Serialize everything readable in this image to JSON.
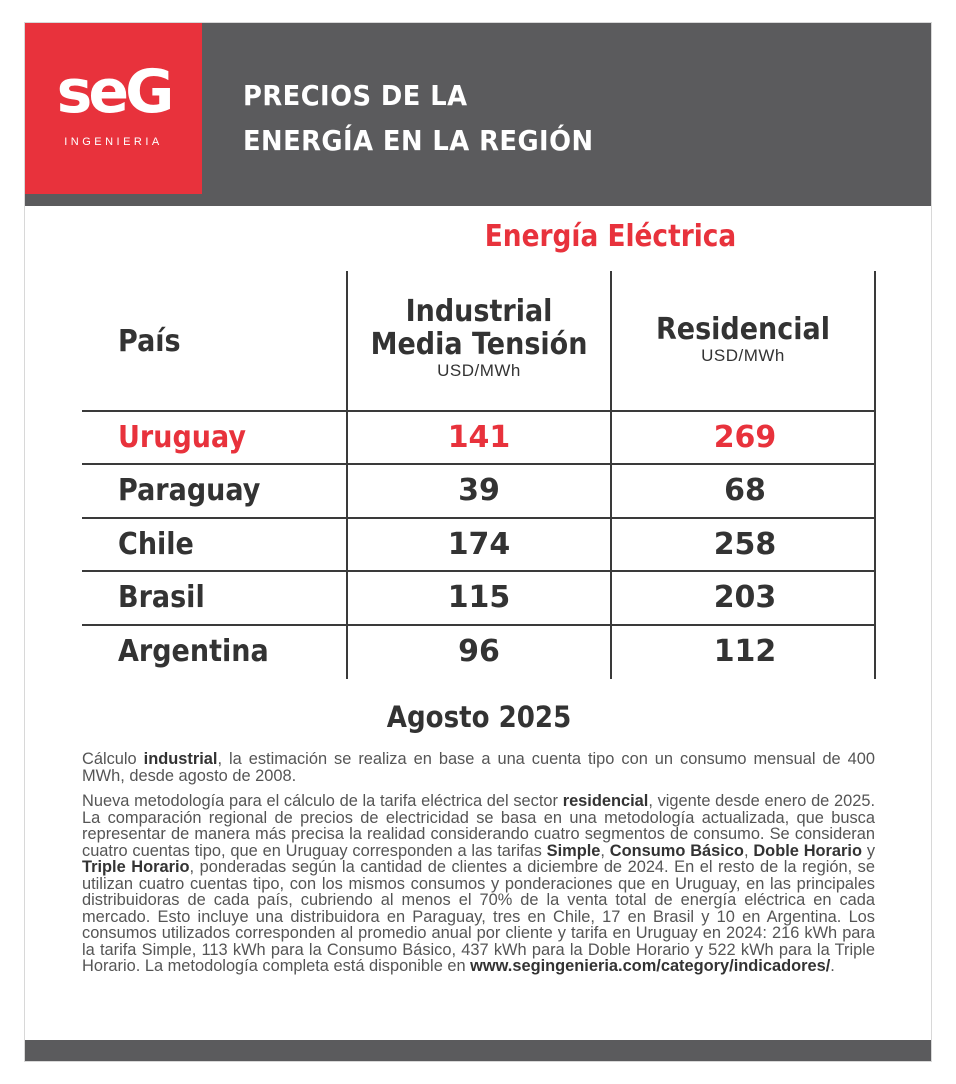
{
  "brand": {
    "logo": "seG",
    "tagline": "INGENIERIA",
    "red": "#e8323c",
    "gray": "#5b5b5d"
  },
  "header": {
    "title_line1": "PRECIOS DE LA",
    "title_line2": "ENERGÍA EN LA REGIÓN"
  },
  "table": {
    "section": "Energía Eléctrica",
    "col_country": "País",
    "col_industrial_line1": "Industrial",
    "col_industrial_line2": "Media Tensión",
    "col_industrial_unit": "USD/MWh",
    "col_residential": "Residencial",
    "col_residential_unit": "USD/MWh",
    "rows": [
      {
        "country": "Uruguay",
        "industrial": "141",
        "residential": "269"
      },
      {
        "country": "Paraguay",
        "industrial": "39",
        "residential": "68"
      },
      {
        "country": "Chile",
        "industrial": "174",
        "residential": "258"
      },
      {
        "country": "Brasil",
        "industrial": "115",
        "residential": "203"
      },
      {
        "country": "Argentina",
        "industrial": "96",
        "residential": "112"
      }
    ]
  },
  "date": "Agosto 2025",
  "notes": {
    "p1": {
      "a": "Cálculo ",
      "b": "industrial",
      "c": ", la estimación se realiza en base a una cuenta tipo con un consumo mensual de 400 MWh, desde agosto de 2008."
    },
    "p2": {
      "a": "Nueva metodología para el cálculo de la tarifa eléctrica del sector ",
      "b": "residencial",
      "c": ", vigente desde enero de 2025. La comparación regional de precios de electricidad se basa en una metodología actualizada, que busca representar de manera más precisa la realidad considerando cuatro segmentos de consumo. Se consideran cuatro cuentas tipo, que en Uruguay corresponden a las tarifas ",
      "d": "Simple",
      "e": ", ",
      "f": "Consumo Básico",
      "g": ", ",
      "h": "Doble Horario",
      "i": " y ",
      "j": "Triple Horario",
      "k": ", ponderadas según la cantidad de clientes a diciembre de 2024. En el resto de la región, se utilizan cuatro cuentas tipo, con los mismos consumos y ponderaciones que en Uruguay, en las principales distribuidoras de cada país, cubriendo al menos el 70% de la venta total de energía eléctrica en cada mercado. Esto incluye una distribuidora en Paraguay, tres en Chile, 17 en Brasil y 10 en Argentina. Los consumos utilizados corresponden al promedio anual por cliente y tarifa en Uruguay en 2024: 216 kWh para la tarifa Simple, 113 kWh para la Consumo Básico, 437 kWh para la Doble Horario y 522 kWh para la Triple Horario. La metodología completa está disponible en ",
      "l": "www.segingenieria.com/category/indicadores/",
      "m": "."
    }
  }
}
